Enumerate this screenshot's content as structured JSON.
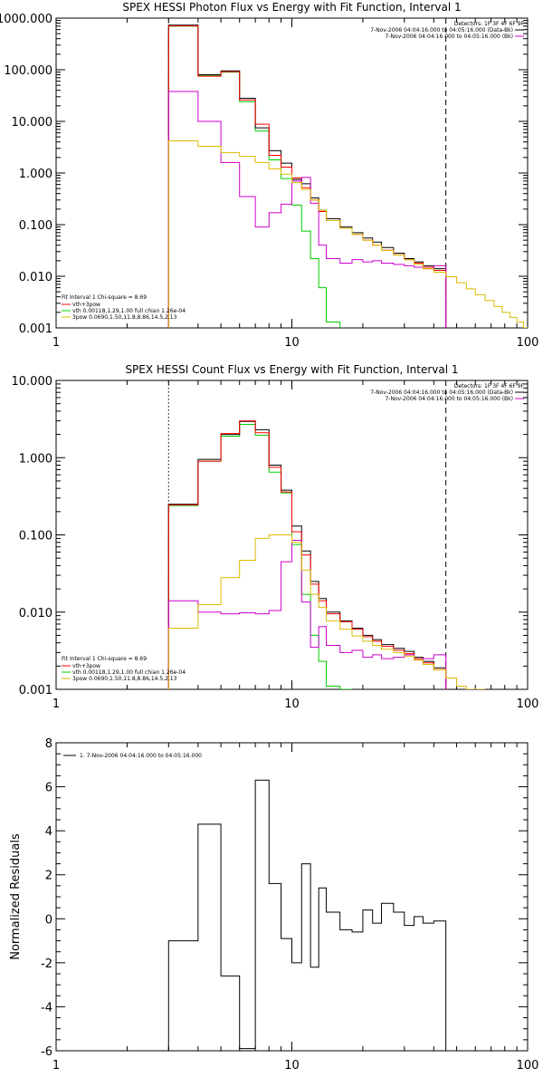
{
  "chart_data": [
    {
      "type": "line",
      "title": "SPEX HESSI Photon Flux vs Energy with Fit Function, Interval 1",
      "xscale": "log",
      "yscale": "log",
      "xlim": [
        1,
        100
      ],
      "ylim": [
        0.001,
        1000
      ],
      "xticks": [
        {
          "v": 1,
          "label": "1"
        },
        {
          "v": 10,
          "label": "10"
        },
        {
          "v": 100,
          "label": "100"
        }
      ],
      "yticks": [
        {
          "v": 0.001,
          "label": "0.001"
        },
        {
          "v": 0.01,
          "label": "0.010"
        },
        {
          "v": 0.1,
          "label": "0.100"
        },
        {
          "v": 1,
          "label": "1.000"
        },
        {
          "v": 10,
          "label": "10.000"
        },
        {
          "v": 100,
          "label": "100.000"
        },
        {
          "v": 1000,
          "label": "1000.000"
        }
      ],
      "legend_top_right": {
        "lines": [
          "Detectors: 1F 3F 4F 6F 9F",
          "7-Nov-2006 04:04:16.000 to 04:05:16.000 (Data-Bk)",
          "7-Nov-2006 04:04:16.000 to 04:05:16.000 (Bk)"
        ],
        "colors": [
          "",
          "#000000",
          "#cc00cc"
        ]
      },
      "legend_bottom_left": {
        "header": "Fit Interval 1    Chi-square = 8.69",
        "entries": [
          {
            "label": "vth+3pow",
            "color": "#ff0000"
          },
          {
            "label": "vth 0.00118,1.29,1.00  full chian 1.26e-04",
            "color": "#00cc00"
          },
          {
            "label": "3pow 0.0690,1.50,11.8,8.86,14.5,2.13",
            "color": "#ddbb00"
          }
        ]
      },
      "vlines": [
        {
          "x": 3,
          "style": "dotted",
          "color": "#000000"
        },
        {
          "x": 45,
          "style": "dashed",
          "color": "#000000"
        }
      ],
      "edges": [
        3,
        4,
        5,
        6,
        7,
        8,
        9,
        10,
        11,
        12,
        13,
        14,
        16,
        18,
        20,
        22,
        24,
        27,
        30,
        33,
        36,
        40,
        45
      ],
      "series": [
        {
          "name": "vth 0.00118,1.29,1.00  full chian 1.26e-04",
          "color": "#00cc00",
          "values": [
            700,
            78,
            90,
            24,
            6.5,
            1.8,
            0.78,
            0.24,
            0.075,
            0.022,
            0.006,
            0.0013
          ]
        },
        {
          "name": "Data-Bk",
          "color": "#000000",
          "values": [
            730,
            80,
            95,
            28,
            7.5,
            2.7,
            1.55,
            0.75,
            0.62,
            0.33,
            0.19,
            0.13,
            0.09,
            0.07,
            0.055,
            0.046,
            0.036,
            0.028,
            0.022,
            0.019,
            0.016,
            0.014
          ]
        },
        {
          "name": "vth+3pow",
          "color": "#ff0000",
          "values": [
            705,
            75,
            92,
            26,
            8.8,
            2.2,
            1.3,
            0.8,
            0.52,
            0.3,
            0.18,
            0.12,
            0.085,
            0.065,
            0.05,
            0.04,
            0.032,
            0.026,
            0.021,
            0.018,
            0.015,
            0.013
          ]
        },
        {
          "name": "Bk",
          "color": "#cc00cc",
          "values": [
            38,
            10,
            1.6,
            0.35,
            0.09,
            0.17,
            0.25,
            0.7,
            0.82,
            0.26,
            0.04,
            0.022,
            0.018,
            0.021,
            0.019,
            0.02,
            0.018,
            0.017,
            0.016,
            0.015,
            0.014,
            0.016
          ]
        },
        {
          "name": "3pow 0.0690,1.50,11.8,8.86,14.5,2.13",
          "color": "#ddbb00",
          "values": [
            4.2,
            3.3,
            2.5,
            2.1,
            1.6,
            1.2,
            0.95,
            0.65,
            0.48,
            0.3,
            0.19,
            0.12,
            0.085,
            0.065,
            0.05,
            0.04,
            0.032,
            0.026,
            0.021,
            0.017,
            0.014,
            0.012,
            0.0098,
            0.0075,
            0.0057,
            0.0044,
            0.0034,
            0.0026,
            0.002,
            0.0016,
            0.0013,
            0.001
          ],
          "x_edges_override": [
            3,
            4,
            5,
            6,
            7,
            8,
            9,
            10,
            11,
            12,
            13,
            14,
            16,
            18,
            20,
            22,
            24,
            27,
            30,
            33,
            36,
            40,
            45,
            50,
            55,
            60,
            66,
            72,
            78,
            84,
            90,
            96,
            100
          ]
        }
      ]
    },
    {
      "type": "line",
      "title": "SPEX HESSI Count Flux vs Energy with Fit Function, Interval 1",
      "xscale": "log",
      "yscale": "log",
      "xlim": [
        1,
        100
      ],
      "ylim": [
        0.001,
        10
      ],
      "xticks": [
        {
          "v": 1,
          "label": "1"
        },
        {
          "v": 10,
          "label": "10"
        },
        {
          "v": 100,
          "label": "100"
        }
      ],
      "yticks": [
        {
          "v": 0.001,
          "label": "0.001"
        },
        {
          "v": 0.01,
          "label": "0.010"
        },
        {
          "v": 0.1,
          "label": "0.100"
        },
        {
          "v": 1,
          "label": "1.000"
        },
        {
          "v": 10,
          "label": "10.000"
        }
      ],
      "legend_top_right": {
        "lines": [
          "Detectors: 1F 3F 4F 6F 9F",
          "7-Nov-2006 04:04:16.000 to 04:05:16.000 (Data-Bk)",
          "7-Nov-2006 04:04:16.000 to 04:05:16.000 (Bk)"
        ],
        "colors": [
          "",
          "#000000",
          "#cc00cc"
        ]
      },
      "legend_bottom_left": {
        "header": "Fit Interval 1    Chi-square = 8.69",
        "entries": [
          {
            "label": "vth+3pow",
            "color": "#ff0000"
          },
          {
            "label": "vth 0.00118,1.29,1.00  full chian 1.26e-04",
            "color": "#00cc00"
          },
          {
            "label": "3pow 0.0690,1.50,11.8,8.86,14.5,2.13",
            "color": "#ddbb00"
          }
        ]
      },
      "vlines": [
        {
          "x": 3,
          "style": "dotted",
          "color": "#000000"
        },
        {
          "x": 45,
          "style": "dashed",
          "color": "#000000"
        }
      ],
      "edges": [
        3,
        4,
        5,
        6,
        7,
        8,
        9,
        10,
        11,
        12,
        13,
        14,
        16,
        18,
        20,
        22,
        24,
        27,
        30,
        33,
        36,
        40,
        45
      ],
      "series": [
        {
          "name": "vth 0.00118,1.29,1.00  full chian 1.26e-04",
          "color": "#00cc00",
          "values": [
            0.24,
            0.9,
            1.9,
            2.7,
            1.95,
            0.65,
            0.35,
            0.075,
            0.017,
            0.005,
            0.0023,
            0.0011,
            0.0009
          ]
        },
        {
          "name": "Data-Bk",
          "color": "#000000",
          "values": [
            0.25,
            0.95,
            2.0,
            2.95,
            2.3,
            0.8,
            0.38,
            0.13,
            0.062,
            0.025,
            0.015,
            0.01,
            0.0077,
            0.0062,
            0.005,
            0.0044,
            0.0038,
            0.0034,
            0.0031,
            0.0026,
            0.0023,
            0.0019
          ]
        },
        {
          "name": "vth+3pow",
          "color": "#ff0000",
          "values": [
            0.245,
            0.9,
            2.05,
            3.0,
            2.1,
            0.75,
            0.36,
            0.11,
            0.055,
            0.023,
            0.014,
            0.0095,
            0.0075,
            0.006,
            0.0048,
            0.0042,
            0.0036,
            0.0032,
            0.0029,
            0.0025,
            0.0022,
            0.0018
          ]
        },
        {
          "name": "Bk",
          "color": "#cc00cc",
          "values": [
            0.014,
            0.01,
            0.0095,
            0.0098,
            0.0095,
            0.0105,
            0.045,
            0.085,
            0.0135,
            0.0035,
            0.0065,
            0.0037,
            0.003,
            0.0032,
            0.0026,
            0.0028,
            0.0025,
            0.0026,
            0.0028,
            0.0024,
            0.0025,
            0.0028
          ]
        },
        {
          "name": "3pow 0.0690,1.50,11.8,8.86,14.5,2.13",
          "color": "#ddbb00",
          "values": [
            0.0062,
            0.0125,
            0.028,
            0.047,
            0.09,
            0.1,
            0.1,
            0.08,
            0.035,
            0.017,
            0.0115,
            0.0077,
            0.006,
            0.0049,
            0.0042,
            0.0037,
            0.0033,
            0.003,
            0.0027,
            0.0024,
            0.0021,
            0.0018,
            0.0014,
            0.0011,
            0.0009,
            0.0008
          ],
          "x_edges_override": [
            3,
            4,
            5,
            6,
            7,
            8,
            9,
            10,
            11,
            12,
            13,
            14,
            16,
            18,
            20,
            22,
            24,
            27,
            30,
            33,
            36,
            40,
            45,
            50,
            55,
            60,
            66
          ]
        }
      ]
    },
    {
      "type": "line",
      "title": "",
      "xscale": "log",
      "yscale": "linear",
      "xlim": [
        1,
        100
      ],
      "ylim": [
        -6,
        8
      ],
      "ylabel": "Normalized Residuals",
      "xticks": [
        {
          "v": 1,
          "label": "1"
        },
        {
          "v": 10,
          "label": "10"
        },
        {
          "v": 100,
          "label": "100"
        }
      ],
      "yticks": [
        {
          "v": -6,
          "label": "-6"
        },
        {
          "v": -4,
          "label": "-4"
        },
        {
          "v": -2,
          "label": "-2"
        },
        {
          "v": 0,
          "label": "0"
        },
        {
          "v": 2,
          "label": "2"
        },
        {
          "v": 4,
          "label": "4"
        },
        {
          "v": 6,
          "label": "6"
        },
        {
          "v": 8,
          "label": "8"
        }
      ],
      "legend_top_left": {
        "label": "1.  7-Nov-2006 04:04:16.000 to 04:05:16.000",
        "color": "#000000"
      },
      "edges": [
        3,
        4,
        5,
        6,
        7,
        8,
        9,
        10,
        11,
        12,
        13,
        14,
        16,
        18,
        20,
        22,
        24,
        27,
        30,
        33,
        36,
        40,
        45
      ],
      "series": [
        {
          "name": "1.  7-Nov-2006 04:04:16.000 to 04:05:16.000",
          "color": "#000000",
          "values": [
            -1.0,
            4.3,
            -2.6,
            -5.9,
            6.3,
            1.6,
            -0.9,
            -2.0,
            2.5,
            -2.2,
            1.4,
            0.3,
            -0.5,
            -0.6,
            0.4,
            -0.2,
            0.7,
            0.3,
            -0.3,
            0.1,
            -0.2,
            -0.1
          ]
        }
      ]
    }
  ]
}
